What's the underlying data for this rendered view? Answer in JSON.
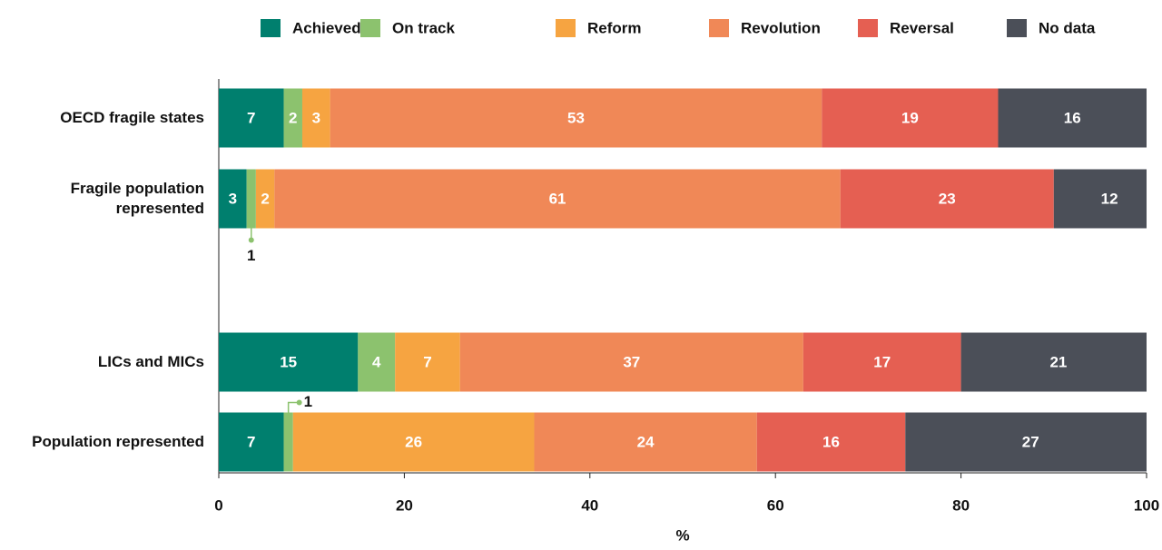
{
  "chart_data": {
    "type": "stacked-bar-horizontal",
    "categories": [
      "OECD fragile states",
      "Fragile population represented",
      "LICs and MICs",
      "Population represented"
    ],
    "series": [
      {
        "name": "Achieved",
        "color": "#007f6e",
        "values": [
          7,
          3,
          15,
          7
        ]
      },
      {
        "name": "On track",
        "color": "#8cc26e",
        "values": [
          2,
          1,
          4,
          1
        ]
      },
      {
        "name": "Reform",
        "color": "#f6a441",
        "values": [
          3,
          2,
          7,
          26
        ]
      },
      {
        "name": "Revolution",
        "color": "#f08857",
        "values": [
          53,
          61,
          37,
          24
        ]
      },
      {
        "name": "Reversal",
        "color": "#e55f52",
        "values": [
          19,
          23,
          17,
          16
        ]
      },
      {
        "name": "No data",
        "color": "#4b4f58",
        "values": [
          16,
          12,
          21,
          27
        ]
      }
    ],
    "xlabel": "%",
    "xlim": [
      0,
      100
    ],
    "xticks": [
      0,
      20,
      40,
      60,
      80,
      100
    ],
    "legend": "top"
  }
}
